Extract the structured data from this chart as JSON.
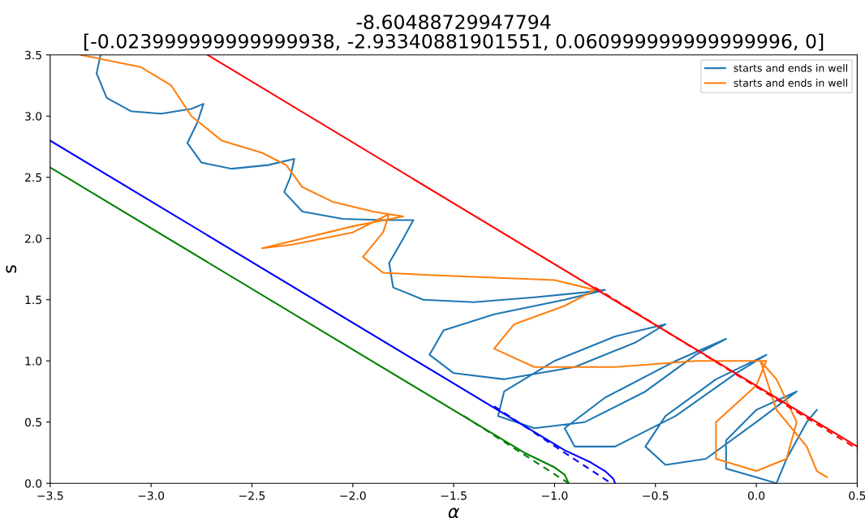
{
  "chart_data": {
    "type": "line",
    "title": "-8.60488729947794\n[-0.023999999999999938, -2.93340881901551, 0.060999999999999996, 0]",
    "xlabel": "α",
    "ylabel": "s",
    "xlim": [
      -3.5,
      0.5
    ],
    "ylim": [
      0.0,
      3.5
    ],
    "xticks": [
      {
        "value": -3.5,
        "label": "−3.5"
      },
      {
        "value": -3.0,
        "label": "−3.0"
      },
      {
        "value": -2.5,
        "label": "−2.5"
      },
      {
        "value": -2.0,
        "label": "−2.0"
      },
      {
        "value": -1.5,
        "label": "−1.5"
      },
      {
        "value": -1.0,
        "label": "−1.0"
      },
      {
        "value": -0.5,
        "label": "−0.5"
      },
      {
        "value": 0.0,
        "label": "0.0"
      },
      {
        "value": 0.5,
        "label": "0.5"
      }
    ],
    "yticks": [
      {
        "value": 0.0,
        "label": "0.0"
      },
      {
        "value": 0.5,
        "label": "0.5"
      },
      {
        "value": 1.0,
        "label": "1.0"
      },
      {
        "value": 1.5,
        "label": "1.5"
      },
      {
        "value": 2.0,
        "label": "2.0"
      },
      {
        "value": 2.5,
        "label": "2.5"
      },
      {
        "value": 3.0,
        "label": "3.0"
      },
      {
        "value": 3.5,
        "label": "3.5"
      }
    ],
    "grid": false,
    "legend": "top right",
    "marker": "none",
    "series": [
      {
        "name": "starts and ends in well",
        "color": "#1f77b4",
        "line_style": "solid",
        "x": [
          -3.25,
          -3.27,
          -3.22,
          -3.1,
          -2.95,
          -2.8,
          -2.74,
          -2.77,
          -2.82,
          -2.75,
          -2.6,
          -2.42,
          -2.29,
          -2.31,
          -2.34,
          -2.25,
          -2.05,
          -1.85,
          -1.7,
          -1.75,
          -1.82,
          -1.8,
          -1.65,
          -1.4,
          -1.1,
          -0.85,
          -0.75,
          -0.95,
          -1.3,
          -1.55,
          -1.62,
          -1.5,
          -1.25,
          -0.9,
          -0.6,
          -0.45,
          -0.7,
          -1.0,
          -1.25,
          -1.28,
          -1.1,
          -0.85,
          -0.55,
          -0.3,
          -0.15,
          -0.4,
          -0.75,
          -0.95,
          -0.9,
          -0.7,
          -0.4,
          -0.1,
          0.05,
          -0.2,
          -0.45,
          -0.55,
          -0.45,
          -0.25,
          0.0,
          0.2,
          0.0,
          -0.15,
          -0.15,
          0.0,
          0.1,
          0.15,
          0.25,
          0.3
        ],
        "values": [
          3.5,
          3.35,
          3.15,
          3.04,
          3.02,
          3.06,
          3.1,
          2.95,
          2.78,
          2.62,
          2.57,
          2.6,
          2.65,
          2.5,
          2.38,
          2.22,
          2.16,
          2.15,
          2.15,
          2.0,
          1.8,
          1.6,
          1.5,
          1.48,
          1.52,
          1.56,
          1.58,
          1.5,
          1.38,
          1.25,
          1.05,
          0.9,
          0.85,
          0.95,
          1.15,
          1.3,
          1.2,
          1.0,
          0.75,
          0.55,
          0.45,
          0.5,
          0.75,
          1.05,
          1.18,
          1.0,
          0.7,
          0.45,
          0.3,
          0.3,
          0.55,
          0.9,
          1.05,
          0.85,
          0.55,
          0.3,
          0.15,
          0.2,
          0.5,
          0.75,
          0.6,
          0.35,
          0.12,
          0.05,
          0.0,
          0.2,
          0.5,
          0.6
        ]
      },
      {
        "name": "starts and ends in well",
        "color": "#ff7f0e",
        "line_style": "solid",
        "x": [
          -3.35,
          -3.05,
          -2.9,
          -2.8,
          -2.65,
          -2.45,
          -2.33,
          -2.25,
          -2.1,
          -1.9,
          -1.75,
          -2.0,
          -2.3,
          -2.45,
          -2.3,
          -2.0,
          -1.82,
          -1.85,
          -1.95,
          -1.85,
          -1.6,
          -1.3,
          -1.0,
          -0.8,
          -0.95,
          -1.2,
          -1.3,
          -1.1,
          -0.7,
          -0.3,
          -0.1,
          0.05,
          0.0,
          -0.2,
          -0.2,
          0.0,
          0.15,
          0.2,
          0.1,
          0.02,
          0.1,
          0.25,
          0.3,
          0.35
        ],
        "values": [
          3.5,
          3.4,
          3.25,
          3.0,
          2.8,
          2.7,
          2.6,
          2.42,
          2.3,
          2.22,
          2.18,
          2.1,
          1.98,
          1.92,
          1.95,
          2.05,
          2.2,
          2.05,
          1.85,
          1.72,
          1.7,
          1.68,
          1.66,
          1.58,
          1.45,
          1.3,
          1.1,
          0.95,
          0.95,
          1.0,
          1.0,
          1.0,
          0.8,
          0.5,
          0.2,
          0.1,
          0.2,
          0.5,
          0.85,
          1.0,
          0.6,
          0.3,
          0.1,
          0.05
        ]
      },
      {
        "color": "#ff0000",
        "line_style": "solid",
        "x": [
          -2.72,
          0.5
        ],
        "values": [
          3.5,
          0.3
        ]
      },
      {
        "color": "#ff0000",
        "line_style": "dashed",
        "x": [
          -0.8,
          0.5
        ],
        "values": [
          1.6,
          0.28
        ]
      },
      {
        "color": "#0000ff",
        "line_style": "solid",
        "x": [
          -3.5,
          -0.95,
          -0.82,
          -0.75,
          -0.71,
          -0.7
        ],
        "values": [
          2.8,
          0.27,
          0.17,
          0.1,
          0.04,
          0.0
        ]
      },
      {
        "color": "#0000ff",
        "line_style": "dashed",
        "x": [
          -1.3,
          -0.72
        ],
        "values": [
          0.63,
          0.0
        ]
      },
      {
        "color": "#008000",
        "line_style": "solid",
        "x": [
          -3.5,
          -1.15,
          -1.0,
          -0.95,
          -0.93
        ],
        "values": [
          2.58,
          0.25,
          0.13,
          0.07,
          0.0
        ]
      },
      {
        "color": "#008000",
        "line_style": "dashed",
        "x": [
          -1.45,
          -0.93
        ],
        "values": [
          0.55,
          0.0
        ]
      }
    ]
  }
}
